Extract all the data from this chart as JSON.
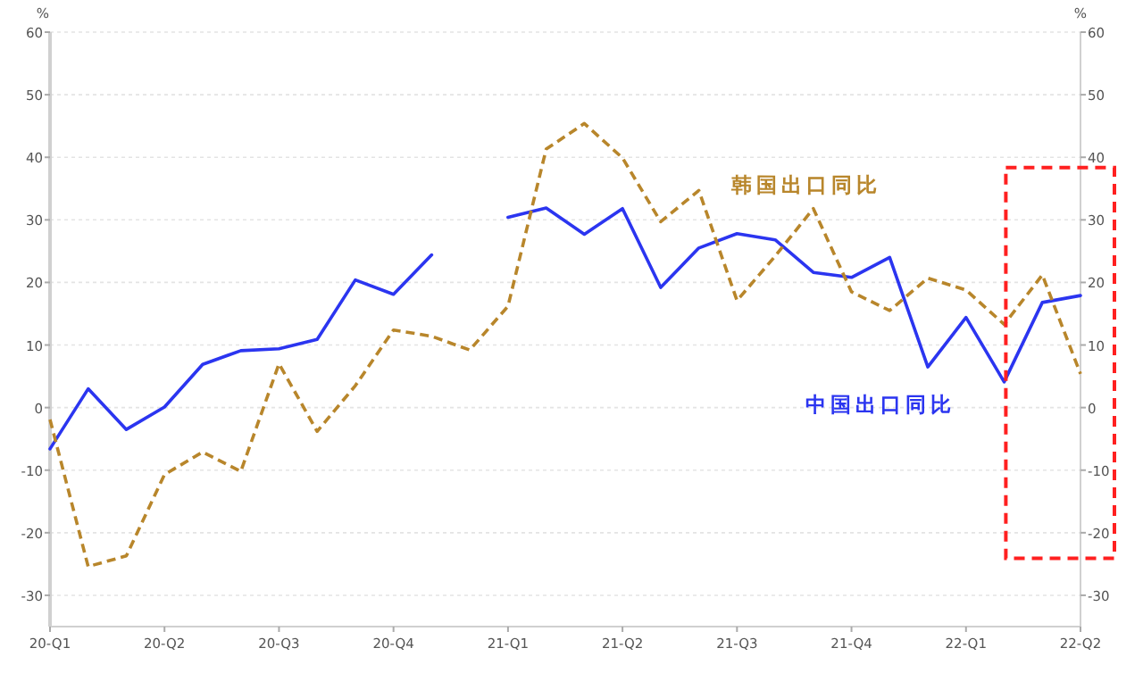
{
  "chart_data": {
    "type": "line",
    "ylabel": "%",
    "y2label": "%",
    "categories": [
      "20-Q1",
      null,
      null,
      "20-Q2",
      null,
      null,
      "20-Q3",
      null,
      null,
      "20-Q4",
      null,
      null,
      "21-Q1",
      null,
      null,
      "21-Q2",
      null,
      null,
      "21-Q3",
      null,
      null,
      "21-Q4",
      null,
      null,
      "22-Q1",
      null,
      null,
      "22-Q2"
    ],
    "series": [
      {
        "name": "中国出口同比",
        "color": "#2b35f0",
        "line_style": "solid",
        "values": [
          -6.6,
          3.0,
          -3.5,
          0.1,
          6.9,
          9.1,
          9.4,
          10.9,
          20.4,
          18.1,
          24.4,
          null,
          30.4,
          31.9,
          27.7,
          31.8,
          19.2,
          25.5,
          27.8,
          26.8,
          21.6,
          20.8,
          24.0,
          6.5,
          14.4,
          4.1,
          16.8,
          17.9
        ]
      },
      {
        "name": "韩国出口同比",
        "color": "#b8862b",
        "line_style": "dashed",
        "values": [
          -1.9,
          -25.4,
          -23.7,
          -10.7,
          -7.1,
          -10.2,
          7.0,
          -3.8,
          3.5,
          12.4,
          11.4,
          9.2,
          16.2,
          41.3,
          45.4,
          39.9,
          29.7,
          34.7,
          17.1,
          24.2,
          31.8,
          18.5,
          15.5,
          20.7,
          18.8,
          13.3,
          21.2,
          5.4
        ]
      }
    ],
    "ylim": [
      -35,
      60
    ],
    "yticks": [
      -30,
      -20,
      -10,
      0,
      10,
      20,
      30,
      40,
      50,
      60
    ],
    "y2lim": [
      -35,
      60
    ],
    "y2ticks": [
      -30,
      -20,
      -10,
      0,
      10,
      20,
      30,
      40,
      50,
      60
    ],
    "grid": "y"
  }
}
